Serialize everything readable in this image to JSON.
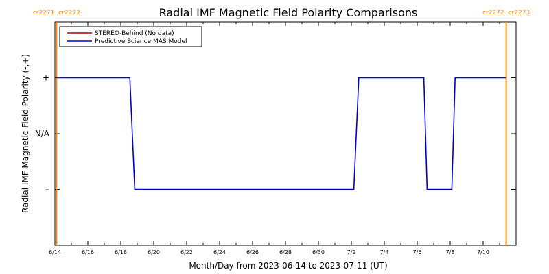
{
  "chart_data": {
    "type": "line",
    "title": "Radial IMF Magnetic Field Polarity Comparisons",
    "xlabel": "Month/Day from 2023-06-14 to 2023-07-11 (UT)",
    "ylabel": "Radial IMF Magnetic Field Polarity (-,+)",
    "x_tick_labels": [
      "6/14",
      "6/16",
      "6/18",
      "6/20",
      "6/22",
      "6/24",
      "6/26",
      "6/28",
      "6/30",
      "7/2",
      "7/4",
      "7/6",
      "7/8",
      "7/10"
    ],
    "x_tick_values": [
      0,
      2,
      4,
      6,
      8,
      10,
      12,
      14,
      16,
      18,
      20,
      22,
      24,
      26
    ],
    "xlim": [
      0,
      28
    ],
    "y_tick_labels": [
      "+",
      "N/A",
      "–"
    ],
    "y_tick_values": [
      1,
      0,
      -1
    ],
    "ylim": [
      -2,
      2
    ],
    "series": [
      {
        "name": "STEREO-Behind (No data)",
        "color": "#b00000",
        "x": [],
        "y": []
      },
      {
        "name": "Predictive Science MAS Model",
        "color": "#0000cc",
        "x": [
          0.1,
          4.55,
          4.85,
          18.15,
          18.45,
          22.4,
          22.6,
          24.1,
          24.3,
          27.4
        ],
        "y": [
          1,
          1,
          -1,
          -1,
          1,
          1,
          -1,
          -1,
          1,
          1
        ]
      }
    ],
    "carrington_markers": [
      {
        "x": 0.1,
        "left_label": "cr2271",
        "right_label": "cr2272"
      },
      {
        "x": 27.4,
        "left_label": "cr2272",
        "right_label": "cr2273"
      }
    ],
    "marker_color": "#ff8c00",
    "legend_position": "top-left"
  }
}
